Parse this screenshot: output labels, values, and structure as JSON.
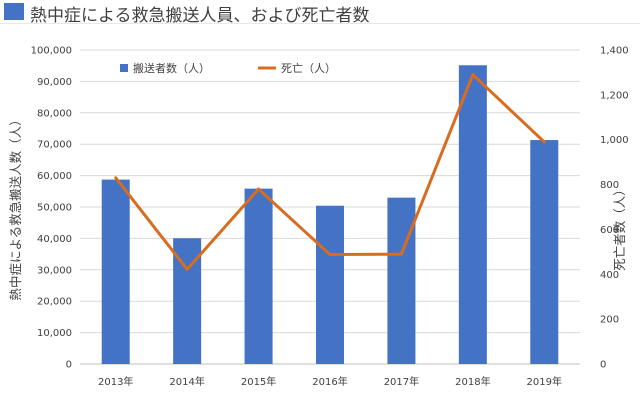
{
  "title": "熱中症による救急搬送人員、および死亡者数",
  "colors": {
    "bar": "#4472c4",
    "line": "#d86c1f",
    "grid": "#d9d9d9",
    "title_swatch": "#4472c4"
  },
  "chart_data": {
    "type": "bar+line",
    "title": "熱中症による救急搬送人員、および死亡者数",
    "categories": [
      "2013年",
      "2014年",
      "2015年",
      "2016年",
      "2017年",
      "2018年",
      "2019年"
    ],
    "series": [
      {
        "name": "搬送者数（人）",
        "type": "bar",
        "axis": "left",
        "values": [
          58729,
          40048,
          55852,
          50412,
          52984,
          95137,
          71317
        ]
      },
      {
        "name": "死亡（人）",
        "type": "line",
        "axis": "right",
        "values": [
          830,
          422,
          780,
          488,
          490,
          1290,
          990
        ]
      }
    ],
    "ylabel_left": "熱中症による救急搬送人数（人）",
    "ylabel_right": "死亡者数（人）",
    "ylim_left": [
      0,
      100000
    ],
    "ylim_right": [
      0,
      1400
    ],
    "yticks_left": [
      "0",
      "10,000",
      "20,000",
      "30,000",
      "40,000",
      "50,000",
      "60,000",
      "70,000",
      "80,000",
      "90,000",
      "100,000"
    ],
    "yticks_right": [
      "0",
      "200",
      "400",
      "600",
      "800",
      "1,000",
      "1,200",
      "1,400"
    ],
    "grid": true,
    "legend_position": "top-left"
  }
}
